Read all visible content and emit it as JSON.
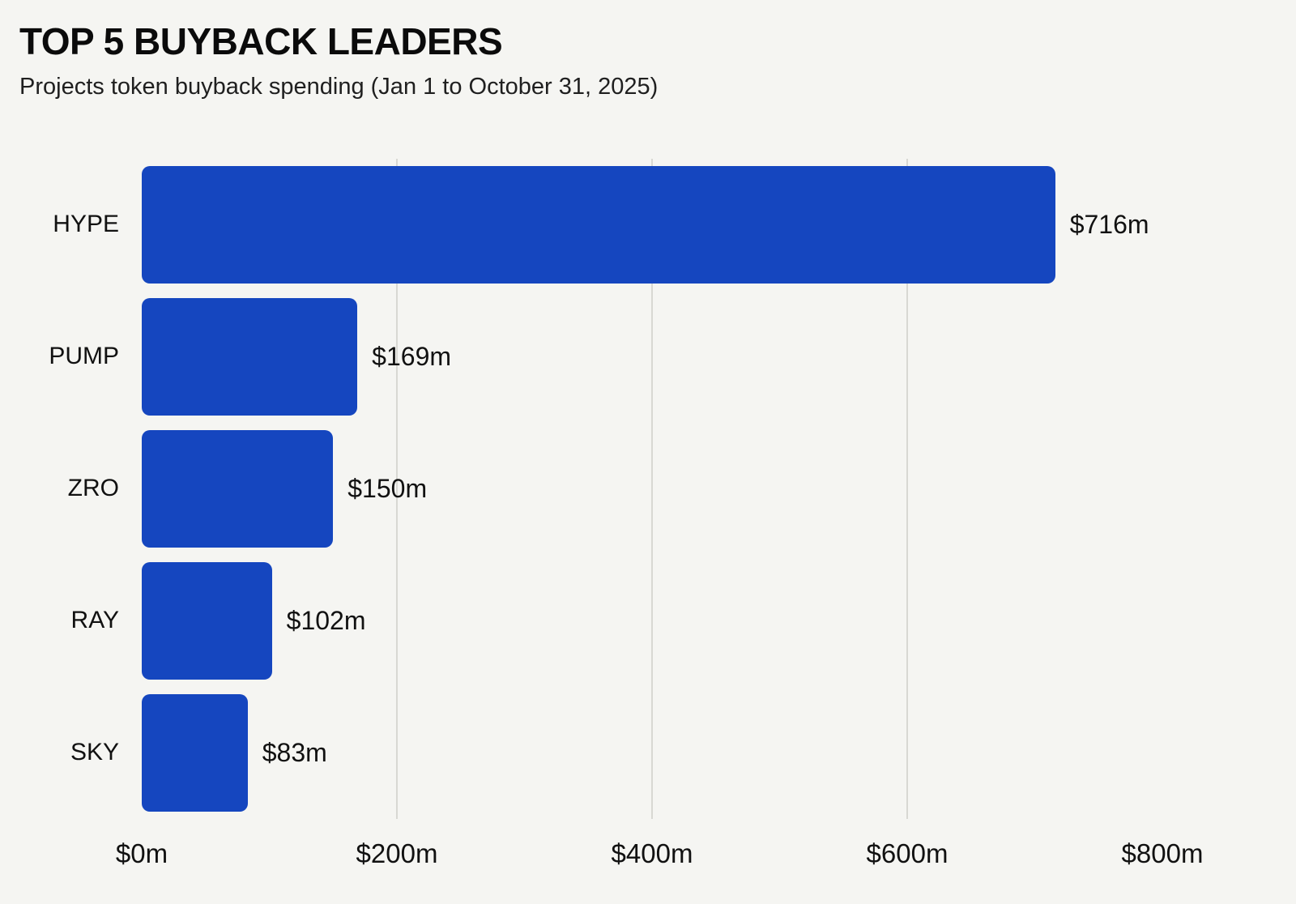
{
  "page": {
    "background_color": "#f5f5f2"
  },
  "header": {
    "title": "TOP 5 BUYBACK LEADERS",
    "subtitle": "Projects token buyback spending (Jan 1 to October 31, 2025)"
  },
  "chart_data": {
    "type": "bar",
    "orientation": "horizontal",
    "title": "TOP 5 BUYBACK LEADERS",
    "subtitle": "Projects token buyback spending (Jan 1 to October 31, 2025)",
    "categories": [
      "HYPE",
      "PUMP",
      "ZRO",
      "RAY",
      "SKY"
    ],
    "values": [
      716,
      169,
      150,
      102,
      83
    ],
    "value_labels": [
      "$716m",
      "$169m",
      "$150m",
      "$102m",
      "$83m"
    ],
    "xlabel": "",
    "ylabel": "",
    "xlim": [
      0,
      800
    ],
    "x_ticks": [
      0,
      200,
      400,
      600,
      800
    ],
    "x_tick_labels": [
      "$0m",
      "$200m",
      "$400m",
      "$600m",
      "$800m"
    ],
    "grid": "vertical-gridlines-at-200m-intervals",
    "legend": "none",
    "bar_color": "#1546bf",
    "gridline_color": "#d8d8d3",
    "text_color": "#111111"
  }
}
